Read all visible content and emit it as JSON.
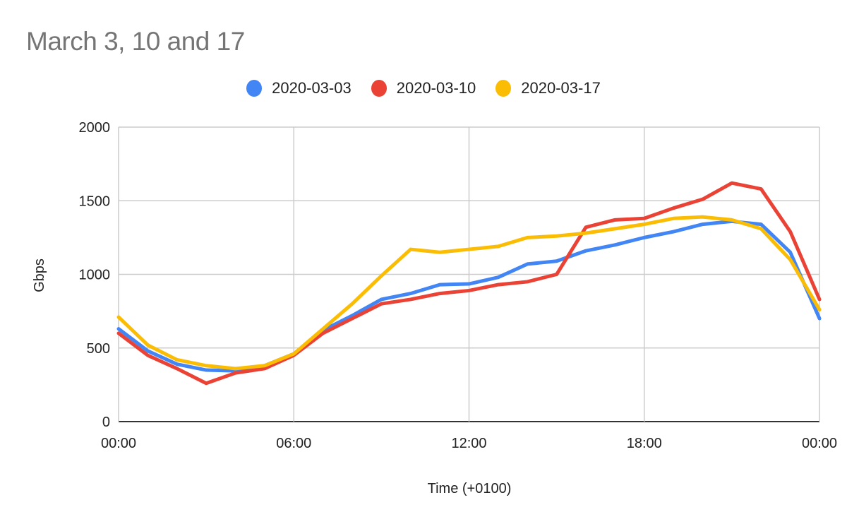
{
  "chart_data": {
    "type": "line",
    "title": "March 3, 10 and 17",
    "xlabel": "Time (+0100)",
    "ylabel": "Gbps",
    "ylim": [
      0,
      2000
    ],
    "yticks": [
      0,
      500,
      1000,
      1500,
      2000
    ],
    "xticks": [
      "00:00",
      "06:00",
      "12:00",
      "18:00",
      "00:00"
    ],
    "x_hours": [
      0,
      1,
      2,
      3,
      4,
      5,
      6,
      7,
      8,
      9,
      10,
      11,
      12,
      13,
      14,
      15,
      16,
      17,
      18,
      19,
      20,
      21,
      22,
      23,
      24
    ],
    "grid": true,
    "legend_position": "top",
    "series": [
      {
        "name": "2020-03-03",
        "color": "#4285f4",
        "values": [
          630,
          480,
          390,
          350,
          345,
          380,
          460,
          620,
          720,
          830,
          870,
          930,
          935,
          980,
          1070,
          1090,
          1160,
          1200,
          1250,
          1290,
          1340,
          1360,
          1340,
          1150,
          700
        ]
      },
      {
        "name": "2020-03-10",
        "color": "#ea4335",
        "values": [
          600,
          450,
          360,
          260,
          330,
          360,
          450,
          600,
          700,
          800,
          830,
          870,
          890,
          930,
          950,
          1000,
          1320,
          1370,
          1380,
          1450,
          1510,
          1620,
          1580,
          1290,
          830
        ]
      },
      {
        "name": "2020-03-17",
        "color": "#fbbc04",
        "values": [
          710,
          520,
          420,
          380,
          360,
          380,
          460,
          630,
          800,
          990,
          1170,
          1150,
          1170,
          1190,
          1250,
          1260,
          1280,
          1310,
          1340,
          1380,
          1390,
          1370,
          1310,
          1100,
          760
        ]
      }
    ]
  }
}
